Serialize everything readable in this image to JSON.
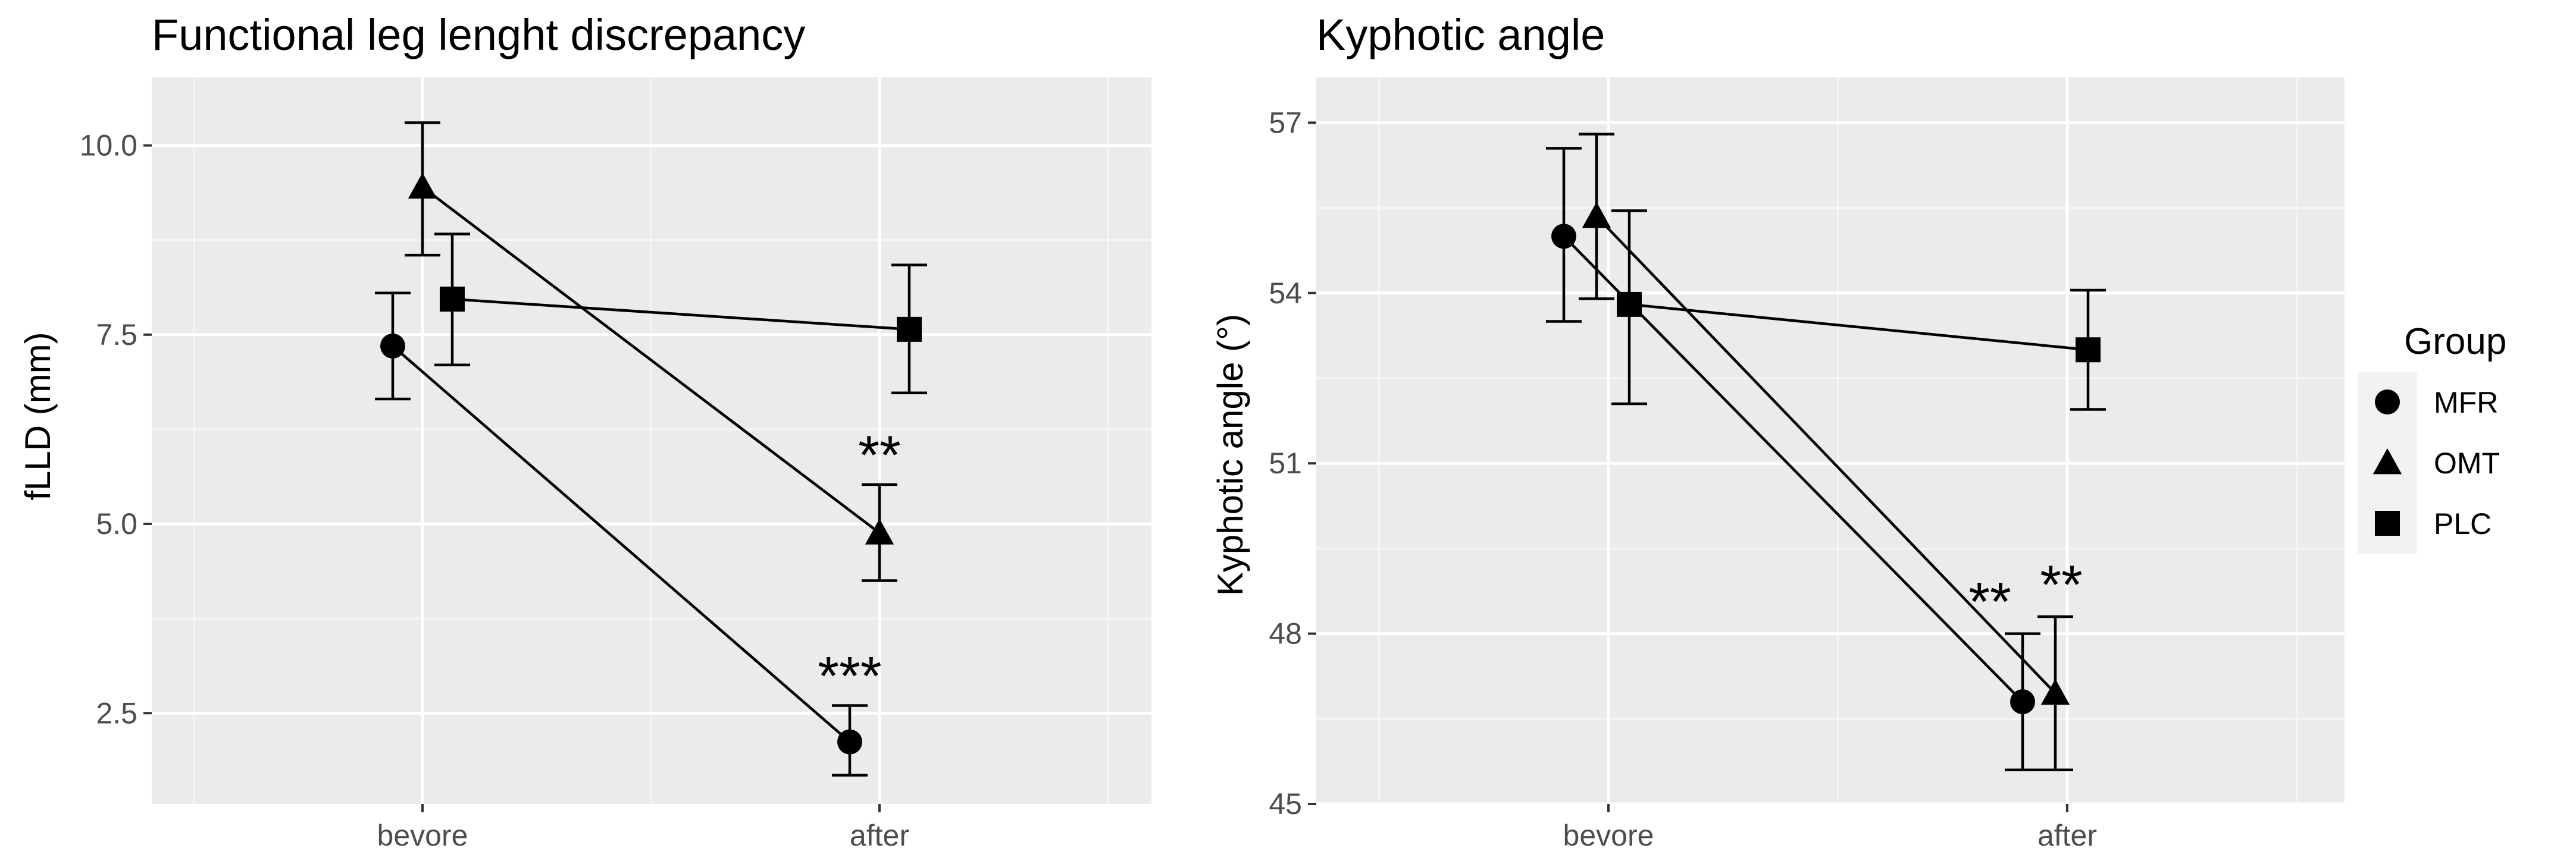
{
  "chart_data": [
    {
      "type": "line",
      "title": "Functional leg lenght discrepancy",
      "xlabel": "",
      "ylabel": "fLLD (mm)",
      "categories": [
        "bevore",
        "after"
      ],
      "ylim": [
        1.3,
        10.9
      ],
      "yticks": [
        2.5,
        5.0,
        7.5,
        10.0
      ],
      "ytick_labels": [
        "2.5",
        "5.0",
        "7.5",
        "10.0"
      ],
      "grid": true,
      "series": [
        {
          "name": "MFR",
          "marker": "circle",
          "values": [
            7.35,
            2.12
          ],
          "lower": [
            6.65,
            1.68
          ],
          "upper": [
            8.05,
            2.6
          ]
        },
        {
          "name": "OMT",
          "marker": "triangle",
          "values": [
            9.45,
            4.88
          ],
          "lower": [
            8.55,
            4.25
          ],
          "upper": [
            10.3,
            5.52
          ]
        },
        {
          "name": "PLC",
          "marker": "square",
          "values": [
            7.97,
            7.57
          ],
          "lower": [
            7.1,
            6.73
          ],
          "upper": [
            8.83,
            8.42
          ]
        }
      ],
      "annotations": [
        {
          "text": "***",
          "series": "MFR",
          "category": "after"
        },
        {
          "text": "**",
          "series": "OMT",
          "category": "after"
        }
      ]
    },
    {
      "type": "line",
      "title": "Kyphotic angle",
      "xlabel": "",
      "ylabel": "Kyphotic angle (°)",
      "categories": [
        "bevore",
        "after"
      ],
      "ylim": [
        45,
        57.8
      ],
      "yticks": [
        45,
        48,
        51,
        54,
        57
      ],
      "ytick_labels": [
        "45",
        "48",
        "51",
        "54",
        "57"
      ],
      "grid": true,
      "series": [
        {
          "name": "MFR",
          "marker": "circle",
          "values": [
            55.0,
            46.8
          ],
          "lower": [
            53.5,
            45.6
          ],
          "upper": [
            56.55,
            48.0
          ]
        },
        {
          "name": "OMT",
          "marker": "triangle",
          "values": [
            55.35,
            46.95
          ],
          "lower": [
            53.9,
            45.6
          ],
          "upper": [
            56.8,
            48.3
          ]
        },
        {
          "name": "PLC",
          "marker": "square",
          "values": [
            53.8,
            53.0
          ],
          "lower": [
            52.05,
            51.95
          ],
          "upper": [
            55.45,
            54.05
          ]
        }
      ],
      "annotations": [
        {
          "text": "**",
          "series": "MFR",
          "category": "after"
        },
        {
          "text": "**",
          "series": "OMT",
          "category": "after"
        }
      ]
    }
  ],
  "legend": {
    "title": "Group",
    "items": [
      {
        "label": "MFR",
        "marker": "circle"
      },
      {
        "label": "OMT",
        "marker": "triangle"
      },
      {
        "label": "PLC",
        "marker": "square"
      }
    ]
  },
  "colors": {
    "panel_background": "#ebebeb",
    "grid_major": "#ffffff",
    "grid_minor": "#f5f5f5",
    "ink": "#000000",
    "tick_text": "#4d4d4d",
    "legend_key_background": "#f2f2f2"
  }
}
